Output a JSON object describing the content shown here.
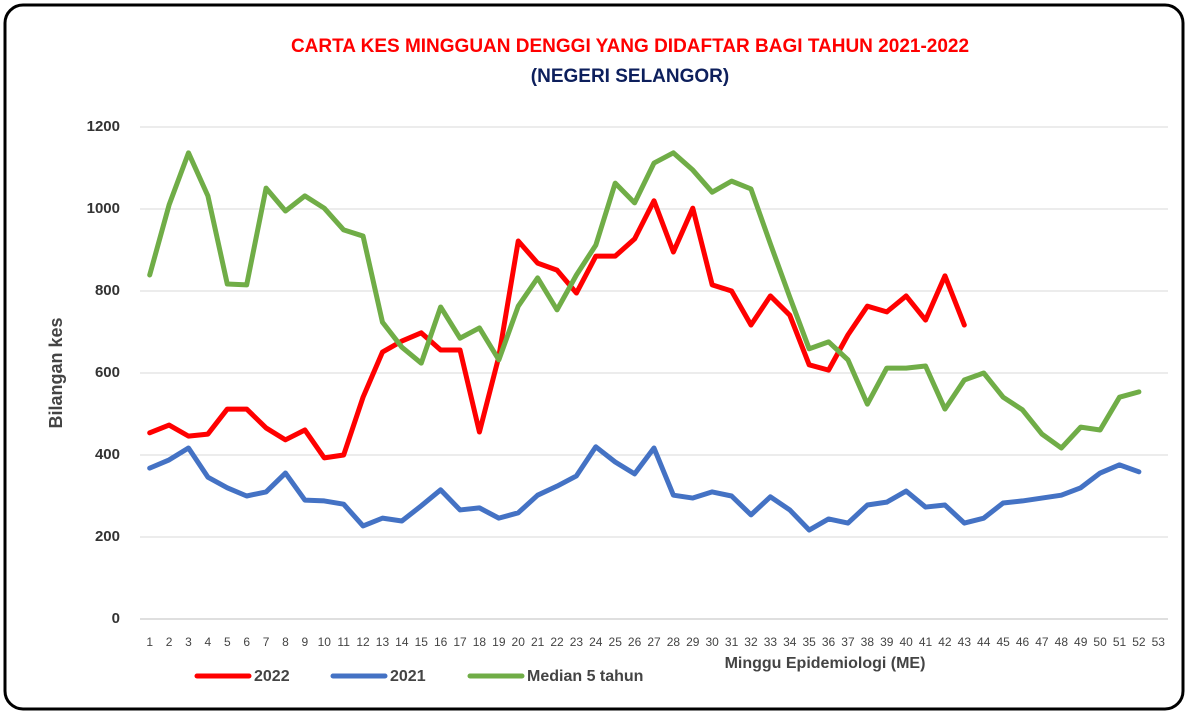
{
  "chart_data": {
    "type": "line",
    "title": "CARTA KES MINGGUAN DENGGI YANG DIDAFTAR BAGI TAHUN 2021-2022",
    "subtitle": "(NEGERI SELANGOR)",
    "x_label": "Minggu Epidemiologi (ME)",
    "y_label": "Bilangan kes",
    "categories": [
      1,
      2,
      3,
      4,
      5,
      6,
      7,
      8,
      9,
      10,
      11,
      12,
      13,
      14,
      15,
      16,
      17,
      18,
      19,
      20,
      21,
      22,
      23,
      24,
      25,
      26,
      27,
      28,
      29,
      30,
      31,
      32,
      33,
      34,
      35,
      36,
      37,
      38,
      39,
      40,
      41,
      42,
      43,
      44,
      45,
      46,
      47,
      48,
      49,
      50,
      51,
      52,
      53
    ],
    "series": [
      {
        "name": "2022",
        "color": "#ff0000",
        "values": [
          454,
          473,
          446,
          451,
          512,
          512,
          466,
          437,
          461,
          393,
          400,
          541,
          651,
          678,
          698,
          656,
          656,
          456,
          640,
          922,
          868,
          851,
          795,
          885,
          885,
          927,
          1020,
          895,
          1002,
          815,
          800,
          717,
          788,
          741,
          620,
          607,
          693,
          763,
          749,
          788,
          729,
          837,
          717,
          null,
          null,
          null,
          null,
          null,
          null,
          null,
          null,
          null,
          null
        ]
      },
      {
        "name": "2021",
        "color": "#4472c4",
        "values": [
          368,
          388,
          417,
          346,
          320,
          300,
          310,
          356,
          290,
          288,
          280,
          227,
          246,
          239,
          276,
          315,
          266,
          271,
          246,
          259,
          302,
          324,
          349,
          420,
          383,
          354,
          417,
          302,
          295,
          310,
          300,
          254,
          298,
          266,
          217,
          244,
          234,
          278,
          285,
          312,
          273,
          278,
          234,
          246,
          283,
          288,
          295,
          302,
          320,
          356,
          376,
          359,
          null
        ]
      },
      {
        "name": "Median 5 tahun",
        "color": "#70ad47",
        "values": [
          839,
          1010,
          1137,
          1032,
          817,
          815,
          1051,
          995,
          1032,
          1002,
          949,
          934,
          724,
          663,
          624,
          761,
          685,
          710,
          632,
          763,
          832,
          754,
          839,
          912,
          1063,
          1015,
          1112,
          1137,
          1095,
          1041,
          1068,
          1049,
          915,
          785,
          659,
          676,
          632,
          524,
          612,
          612,
          617,
          512,
          583,
          600,
          541,
          510,
          451,
          417,
          468,
          461,
          541,
          554,
          null
        ]
      }
    ],
    "ylim": [
      0,
      1200
    ],
    "yticks": [
      0,
      200,
      400,
      600,
      800,
      1000,
      1200
    ],
    "grid": true
  }
}
